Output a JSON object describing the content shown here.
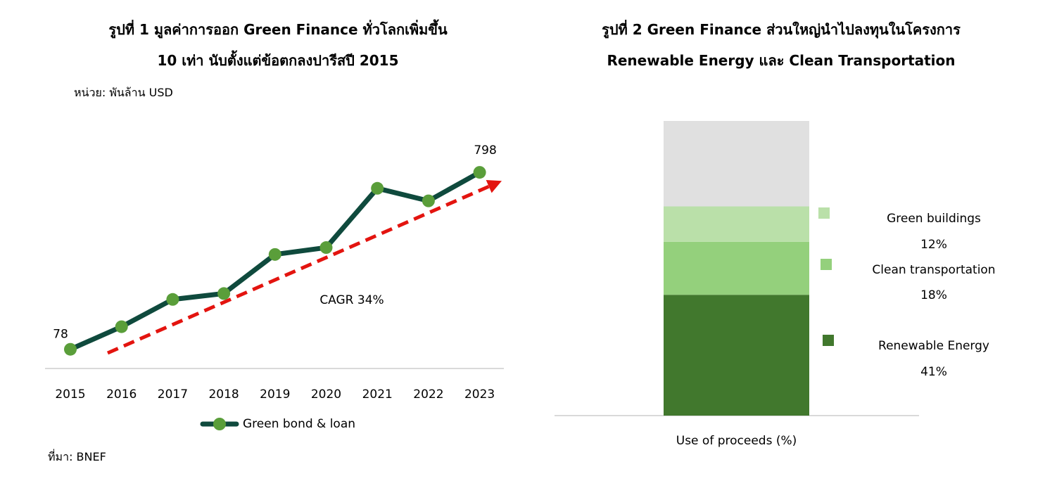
{
  "figure1": {
    "title_line1": "รูปที่ 1 มูลค่าการออก Green Finance ทั่วโลกเพิ่มขึ้น",
    "title_line2": "10 เท่า นับตั้งแต่ข้อตกลงปารีสปี 2015",
    "unit_label": "หน่วย: พันล้าน USD",
    "source": "ที่มา: BNEF",
    "colors": {
      "line": "#0f4a3d",
      "marker": "#5a9e3a",
      "trend": "#e3140f",
      "axis": "#d9d9d9"
    }
  },
  "figure2": {
    "title_line1": "รูปที่ 2 Green Finance ส่วนใหญ่นำไปลงทุนในโครงการ",
    "title_line2": "Renewable Energy และ Clean Transportation",
    "colors": {
      "axis": "#d9d9d9"
    }
  },
  "chart_data": [
    {
      "type": "line",
      "title": "รูปที่ 1 มูลค่าการออก Green Finance ทั่วโลกเพิ่มขึ้น 10 เท่า นับตั้งแต่ข้อตกลงปารีสปี 2015",
      "ylabel": "หน่วย: พันล้าน USD",
      "categories": [
        "2015",
        "2016",
        "2017",
        "2018",
        "2019",
        "2020",
        "2021",
        "2022",
        "2023"
      ],
      "series": [
        {
          "name": "Green bond & loan",
          "values": [
            78,
            170,
            281,
            305,
            464,
            492,
            733,
            682,
            798
          ]
        }
      ],
      "data_labels": [
        {
          "index": 0,
          "text": "78"
        },
        {
          "index": 8,
          "text": "798"
        }
      ],
      "annotation": "CAGR 34%",
      "trendline": {
        "style": "dashed-arrow",
        "color": "#e3140f"
      },
      "ylim": [
        0,
        1050
      ],
      "grid": false,
      "legend": "bottom"
    },
    {
      "type": "bar",
      "stacked": true,
      "categories": [
        "Use of proceeds (%)"
      ],
      "xlabel": "Use of proceeds (%)",
      "series": [
        {
          "name": "Renewable Energy",
          "value": 41,
          "label": "41%",
          "color": "#41782d"
        },
        {
          "name": "Clean transportation",
          "value": 18,
          "label": "18%",
          "color": "#94d07c"
        },
        {
          "name": "Green buildings",
          "value": 12,
          "label": "12%",
          "color": "#bae0a9"
        },
        {
          "name": "",
          "value": 29,
          "label": "",
          "color": "#e0e0e0"
        }
      ],
      "ylim": [
        0,
        100
      ],
      "grid": false,
      "legend": "right"
    }
  ]
}
